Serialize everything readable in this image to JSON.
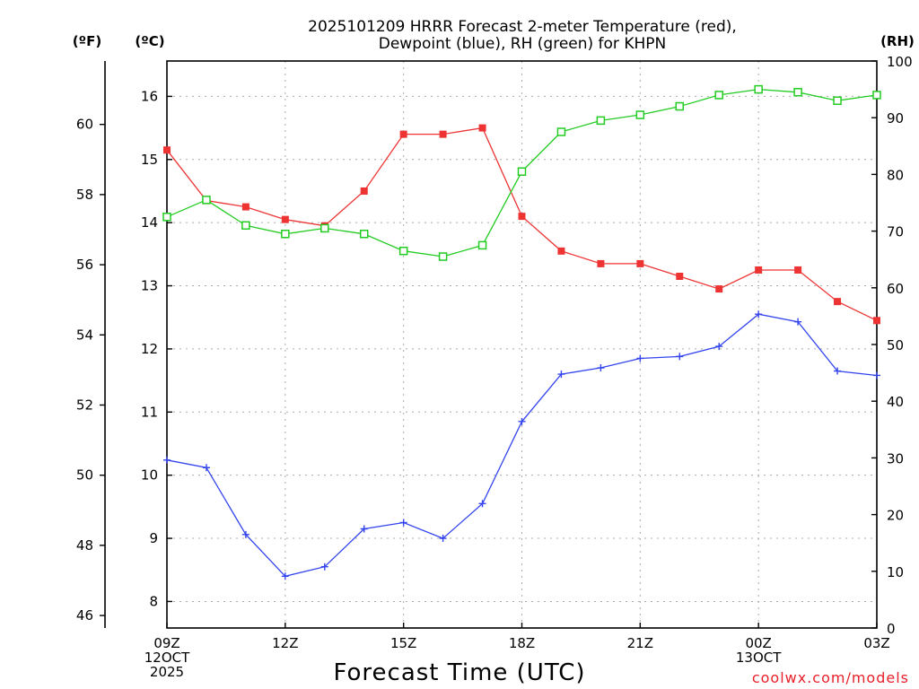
{
  "title": {
    "line1": "2025101209 HRRR Forecast 2-meter Temperature (red),",
    "line2": "Dewpoint (blue), RH (green) for KHPN"
  },
  "axis_units": {
    "fahrenheit": "(ºF)",
    "celsius": "(ºC)",
    "rh": "(RH)"
  },
  "x_axis_title": "Forecast Time (UTC)",
  "credit": "coolwx.com/models",
  "colors": {
    "temperature": "#ee3333",
    "dewpoint": "#3344ee",
    "rh": "#22cc22",
    "grid": "#aaaaaa"
  },
  "chart_data": {
    "type": "line",
    "title": "2025101209 HRRR Forecast 2-meter Temperature (red), Dewpoint (blue), RH (green) for KHPN",
    "xlabel": "Forecast Time (UTC)",
    "ylabel_left_primary": "(ºC)",
    "ylabel_left_secondary": "(ºF)",
    "ylabel_right": "(RH)",
    "x_hours": [
      0,
      1,
      2,
      3,
      4,
      5,
      6,
      7,
      8,
      9,
      10,
      11,
      12,
      13,
      14,
      15,
      16,
      17,
      18
    ],
    "xlim": [
      0,
      18
    ],
    "x_ticks": [
      {
        "hour": 0,
        "lines": [
          "09Z",
          "12OCT",
          "2025"
        ]
      },
      {
        "hour": 3,
        "lines": [
          "12Z"
        ]
      },
      {
        "hour": 6,
        "lines": [
          "15Z"
        ]
      },
      {
        "hour": 9,
        "lines": [
          "18Z"
        ]
      },
      {
        "hour": 12,
        "lines": [
          "21Z"
        ]
      },
      {
        "hour": 15,
        "lines": [
          "00Z",
          "13OCT"
        ]
      },
      {
        "hour": 18,
        "lines": [
          "03Z"
        ]
      }
    ],
    "celsius_axis": {
      "ylim": [
        7.58,
        16.56
      ],
      "ticks": [
        8,
        9,
        10,
        11,
        12,
        13,
        14,
        15,
        16
      ]
    },
    "fahrenheit_axis": {
      "ticks": [
        46,
        48,
        50,
        52,
        54,
        56,
        58,
        60
      ]
    },
    "rh_axis": {
      "ylim": [
        0,
        100
      ],
      "ticks": [
        0,
        10,
        20,
        30,
        40,
        50,
        60,
        70,
        80,
        90,
        100
      ]
    },
    "series": [
      {
        "name": "2-meter Temperature",
        "color": "red",
        "axis": "celsius",
        "marker": "filled-square",
        "values": [
          15.15,
          14.35,
          14.25,
          14.05,
          13.95,
          14.5,
          15.4,
          15.4,
          15.5,
          14.1,
          13.55,
          13.35,
          13.35,
          13.15,
          12.95,
          13.25,
          13.25,
          12.75,
          12.45
        ]
      },
      {
        "name": "Dewpoint",
        "color": "blue",
        "axis": "celsius",
        "marker": "plus",
        "values": [
          10.24,
          10.12,
          9.06,
          8.4,
          8.55,
          9.15,
          9.25,
          9.0,
          9.55,
          10.85,
          11.6,
          11.7,
          11.85,
          11.88,
          12.04,
          12.55,
          12.43,
          11.65,
          11.58
        ]
      },
      {
        "name": "Relative Humidity",
        "color": "green",
        "axis": "rh",
        "marker": "open-square",
        "values": [
          72.5,
          75.5,
          71.0,
          69.5,
          70.5,
          69.5,
          66.5,
          65.5,
          67.5,
          80.5,
          87.5,
          89.5,
          90.5,
          92.0,
          94.0,
          95.0,
          94.5,
          93.0,
          94.0
        ]
      }
    ]
  }
}
